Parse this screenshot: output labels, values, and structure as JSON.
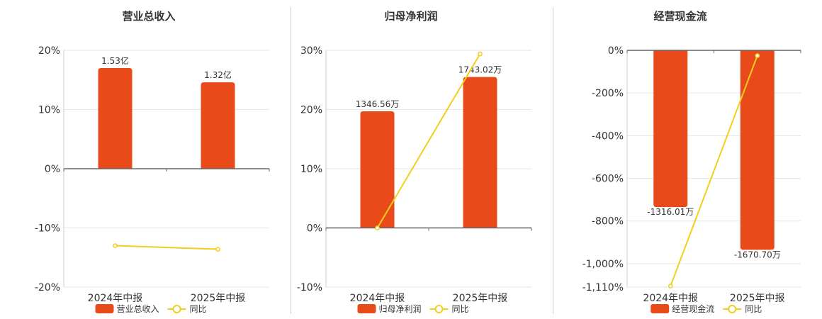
{
  "colors": {
    "bar": "#e84a1a",
    "line": "#f2cf1d",
    "grid": "#e6e6e6",
    "axis": "#666666"
  },
  "legend": {
    "line_label": "同比"
  },
  "chart_data": [
    {
      "type": "bar",
      "title": "营业总收入",
      "categories": [
        "2024年中报",
        "2025年中报"
      ],
      "series": [
        {
          "name": "营业总收入",
          "kind": "bar",
          "values": [
            17,
            14.6
          ],
          "labels": [
            "1.53亿",
            "1.32亿"
          ]
        },
        {
          "name": "同比",
          "kind": "line",
          "values": [
            -13,
            -13.6
          ]
        }
      ],
      "yticks": [
        20,
        10,
        0,
        -10,
        -20
      ],
      "ytick_labels": [
        "20%",
        "10%",
        "0%",
        "-10%",
        "-20%"
      ],
      "ylim": [
        -20,
        20
      ],
      "grid": true,
      "legend_position": "bottom"
    },
    {
      "type": "bar",
      "title": "归母净利润",
      "categories": [
        "2024年中报",
        "2025年中报"
      ],
      "series": [
        {
          "name": "归母净利润",
          "kind": "bar",
          "values": [
            19.7,
            25.5
          ],
          "labels": [
            "1346.56万",
            "1743.02万"
          ]
        },
        {
          "name": "同比",
          "kind": "line",
          "values": [
            0,
            29.4
          ]
        }
      ],
      "yticks": [
        30,
        20,
        10,
        0,
        -10
      ],
      "ytick_labels": [
        "30%",
        "20%",
        "10%",
        "0%",
        "-10%"
      ],
      "ylim": [
        -10,
        30
      ],
      "grid": true,
      "legend_position": "bottom"
    },
    {
      "type": "bar",
      "title": "经营现金流",
      "categories": [
        "2024年中报",
        "2025年中报"
      ],
      "series": [
        {
          "name": "经营现金流",
          "kind": "bar",
          "values": [
            -735,
            -935
          ],
          "labels": [
            "-1316.01万",
            "-1670.70万"
          ]
        },
        {
          "name": "同比",
          "kind": "line",
          "values": [
            -1105,
            -25
          ]
        }
      ],
      "yticks": [
        0,
        -200,
        -400,
        -600,
        -800,
        -1000,
        -1110
      ],
      "ytick_labels": [
        "0%",
        "-200%",
        "-400%",
        "-600%",
        "-800%",
        "-1,000%",
        "-1,110%"
      ],
      "ylim": [
        -1110,
        0
      ],
      "grid": true,
      "legend_position": "bottom"
    }
  ]
}
